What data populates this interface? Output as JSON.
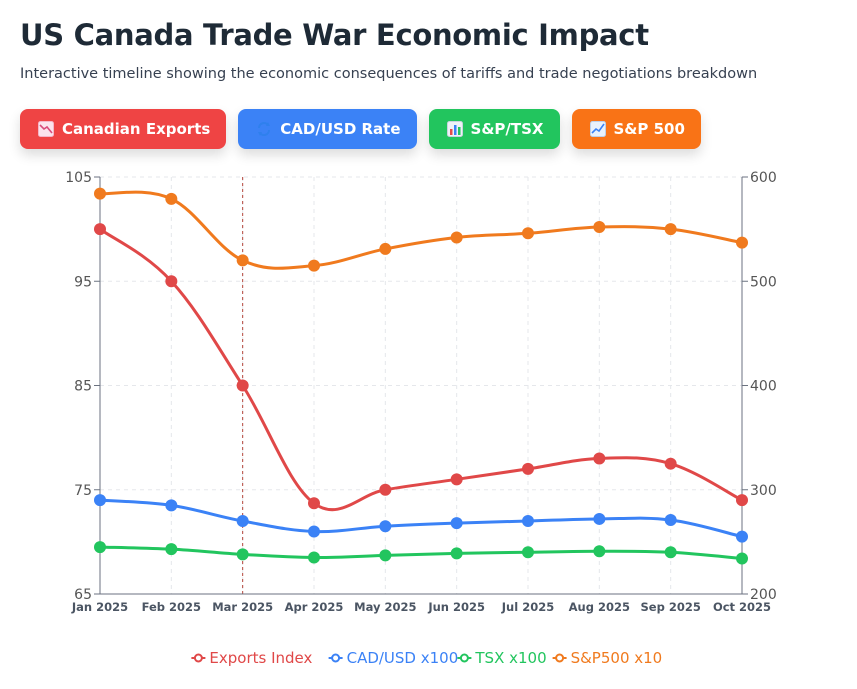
{
  "header": {
    "title": "US Canada Trade War Economic Impact",
    "subtitle": "Interactive timeline showing the economic consequences of tariffs and trade negotiations breakdown"
  },
  "buttons": [
    {
      "label": "Canadian Exports",
      "color": "#ef4444",
      "icon": "chart-decreasing-icon"
    },
    {
      "label": "CAD/USD Rate",
      "color": "#3b82f6",
      "icon": "exchange-arrows-icon"
    },
    {
      "label": "S&P/TSX",
      "color": "#22c55e",
      "icon": "bar-chart-icon"
    },
    {
      "label": "S&P 500",
      "color": "#f97316",
      "icon": "chart-increasing-icon"
    }
  ],
  "chart_data": {
    "type": "line",
    "categories": [
      "Jan 2025",
      "Feb 2025",
      "Mar 2025",
      "Apr 2025",
      "May 2025",
      "Jun 2025",
      "Jul 2025",
      "Aug 2025",
      "Sep 2025",
      "Oct 2025"
    ],
    "left_axis": {
      "ylim": [
        65,
        105
      ],
      "ticks": [
        65,
        75,
        85,
        95,
        105
      ]
    },
    "right_axis": {
      "ylim": [
        200,
        600
      ],
      "ticks": [
        200,
        300,
        400,
        500,
        600
      ]
    },
    "grid": true,
    "marker_lines": [
      "Mar 2025",
      "Oct 2025"
    ],
    "legend_position": "bottom",
    "series": [
      {
        "name": "Exports Index",
        "color": "#e04848",
        "axis": "left",
        "values": [
          100,
          95,
          85,
          73.7,
          75,
          76,
          77,
          78,
          77.5,
          74
        ]
      },
      {
        "name": "CAD/USD x100",
        "color": "#3b82f6",
        "axis": "left",
        "values": [
          74,
          73.5,
          72,
          71,
          71.5,
          71.8,
          72,
          72.2,
          72.1,
          70.5
        ]
      },
      {
        "name": "TSX x100",
        "color": "#22c55e",
        "axis": "left",
        "values": [
          69.5,
          69.3,
          68.8,
          68.5,
          68.7,
          68.9,
          69,
          69.1,
          69,
          68.4
        ]
      },
      {
        "name": "S&P500 x10",
        "color": "#f07a1e",
        "axis": "right",
        "values": [
          584,
          579,
          520,
          515,
          531,
          542,
          546,
          552,
          550,
          537
        ]
      }
    ]
  }
}
